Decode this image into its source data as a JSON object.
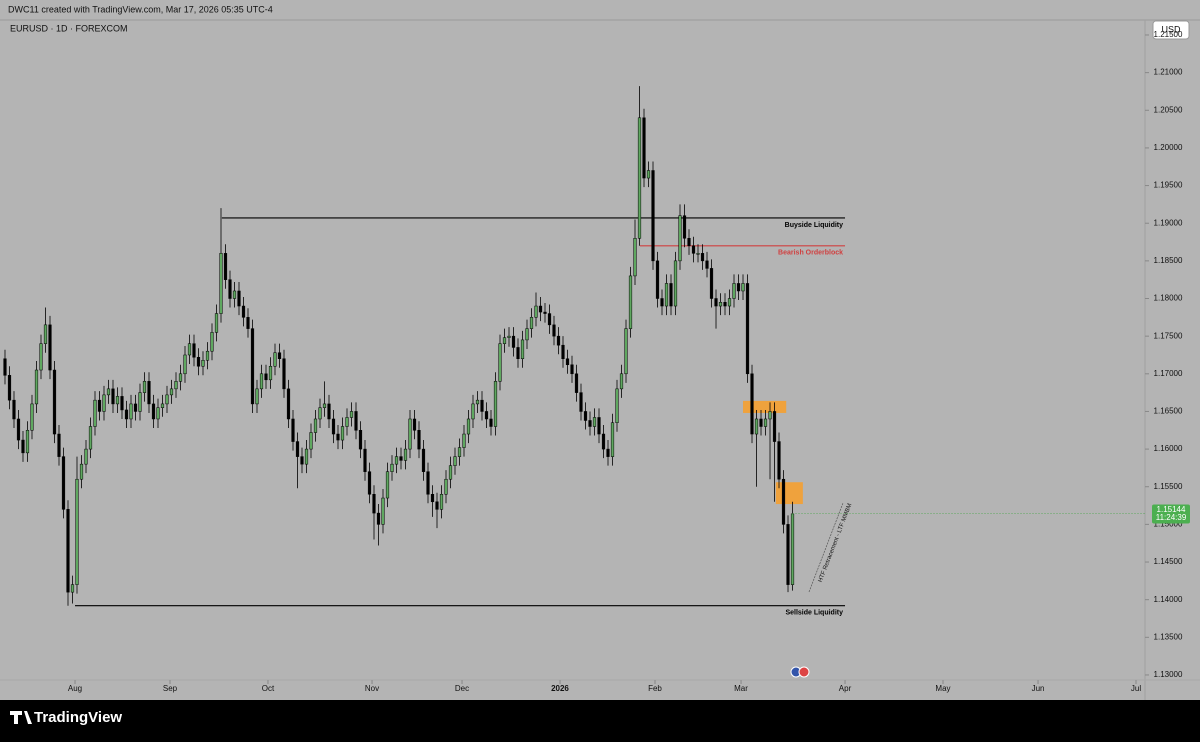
{
  "header": "DWC11 created with TradingView.com, Mar 17, 2026 05:35 UTC-4",
  "brand": "TradingView",
  "chart_data": {
    "type": "candlestick",
    "title": "EURUSD · 1D · FOREXCOM",
    "currency": "USD",
    "up_color": "#5fa860",
    "down_color": "#000000",
    "xlim": [
      -1.11,
      253.33
    ],
    "ylim": [
      1.12734,
      1.21699
    ],
    "xticks": [
      {
        "value": 15.56,
        "label": "Aug"
      },
      {
        "value": 36.67,
        "label": "Sep"
      },
      {
        "value": 58.44,
        "label": "Oct"
      },
      {
        "value": 81.56,
        "label": "Nov"
      },
      {
        "value": 101.56,
        "label": "Dec"
      },
      {
        "value": 123.33,
        "label": "2026"
      },
      {
        "value": 144.44,
        "label": "Feb"
      },
      {
        "value": 163.56,
        "label": "Mar"
      },
      {
        "value": 186.67,
        "label": "Apr"
      },
      {
        "value": 208.44,
        "label": "May"
      },
      {
        "value": 229.56,
        "label": "Jun"
      },
      {
        "value": 251.33,
        "label": "Jul"
      }
    ],
    "yticks": [
      {
        "value": 1.13,
        "label": "1.13000"
      },
      {
        "value": 1.135,
        "label": "1.13500"
      },
      {
        "value": 1.14,
        "label": "1.14000"
      },
      {
        "value": 1.145,
        "label": "1.14500"
      },
      {
        "value": 1.15,
        "label": "1.15000"
      },
      {
        "value": 1.155,
        "label": "1.15500"
      },
      {
        "value": 1.16,
        "label": "1.16000"
      },
      {
        "value": 1.165,
        "label": "1.16500"
      },
      {
        "value": 1.17,
        "label": "1.17000"
      },
      {
        "value": 1.175,
        "label": "1.17500"
      },
      {
        "value": 1.18,
        "label": "1.18000"
      },
      {
        "value": 1.185,
        "label": "1.18500"
      },
      {
        "value": 1.19,
        "label": "1.19000"
      },
      {
        "value": 1.195,
        "label": "1.19500"
      },
      {
        "value": 1.2,
        "label": "1.20000"
      },
      {
        "value": 1.205,
        "label": "1.20500"
      },
      {
        "value": 1.21,
        "label": "1.21000"
      },
      {
        "value": 1.215,
        "label": "1.21500"
      }
    ],
    "open": [
      1.172,
      1.1698,
      1.1665,
      1.164,
      1.1612,
      1.1595,
      1.1625,
      1.166,
      1.1705,
      1.174,
      1.1765,
      1.1705,
      1.162,
      1.159,
      1.152,
      1.141,
      1.142,
      1.156,
      1.158,
      1.16,
      1.163,
      1.1665,
      1.165,
      1.1672,
      1.168,
      1.166,
      1.167,
      1.1652,
      1.164,
      1.166,
      1.165,
      1.1675,
      1.169,
      1.166,
      1.164,
      1.1655,
      1.166,
      1.1672,
      1.168,
      1.169,
      1.17,
      1.1725,
      1.174,
      1.1722,
      1.171,
      1.1718,
      1.173,
      1.1755,
      1.178,
      1.186,
      1.1825,
      1.18,
      1.181,
      1.179,
      1.1775,
      1.176,
      1.166,
      1.168,
      1.17,
      1.1692,
      1.171,
      1.1728,
      1.172,
      1.168,
      1.164,
      1.161,
      1.159,
      1.158,
      1.16,
      1.1622,
      1.164,
      1.1655,
      1.166,
      1.164,
      1.162,
      1.1612,
      1.163,
      1.1642,
      1.165,
      1.1625,
      1.16,
      1.157,
      1.154,
      1.1515,
      1.15,
      1.1535,
      1.157,
      1.158,
      1.159,
      1.1585,
      1.16,
      1.164,
      1.1625,
      1.16,
      1.157,
      1.154,
      1.153,
      1.152,
      1.154,
      1.156,
      1.1578,
      1.159,
      1.1602,
      1.162,
      1.164,
      1.166,
      1.1665,
      1.165,
      1.164,
      1.163,
      1.169,
      1.174,
      1.1748,
      1.175,
      1.1735,
      1.172,
      1.1745,
      1.176,
      1.1775,
      1.179,
      1.1782,
      1.178,
      1.1765,
      1.175,
      1.1738,
      1.172,
      1.1712,
      1.17,
      1.1675,
      1.165,
      1.1638,
      1.163,
      1.1642,
      1.162,
      1.16,
      1.159,
      1.1635,
      1.168,
      1.17,
      1.176,
      1.183,
      1.188,
      1.204,
      1.196,
      1.197,
      1.185,
      1.18,
      1.179,
      1.182,
      1.179,
      1.185,
      1.191,
      1.188,
      1.187,
      1.186,
      1.186,
      1.185,
      1.184,
      1.18,
      1.179,
      1.1795,
      1.179,
      1.18,
      1.182,
      1.181,
      1.182,
      1.17,
      1.162,
      1.164,
      1.163,
      1.164,
      1.165,
      1.161,
      1.156,
      1.15,
      1.142
    ],
    "high": [
      1.1732,
      1.171,
      1.1677,
      1.1652,
      1.1624,
      1.1637,
      1.1672,
      1.1717,
      1.1752,
      1.1788,
      1.1777,
      1.1717,
      1.1632,
      1.1602,
      1.1532,
      1.1432,
      1.159,
      1.1592,
      1.1612,
      1.1642,
      1.1677,
      1.1677,
      1.1684,
      1.1692,
      1.1692,
      1.1682,
      1.1682,
      1.1664,
      1.1672,
      1.1672,
      1.1687,
      1.1702,
      1.1702,
      1.1672,
      1.1667,
      1.1672,
      1.1684,
      1.1692,
      1.1702,
      1.1712,
      1.1737,
      1.1752,
      1.1752,
      1.1734,
      1.173,
      1.1742,
      1.1767,
      1.1792,
      1.192,
      1.1872,
      1.1837,
      1.1822,
      1.1822,
      1.1802,
      1.1787,
      1.1772,
      1.1692,
      1.1712,
      1.1712,
      1.1722,
      1.174,
      1.174,
      1.1732,
      1.1692,
      1.1652,
      1.1622,
      1.1602,
      1.1612,
      1.1634,
      1.1652,
      1.1667,
      1.169,
      1.1672,
      1.1652,
      1.1632,
      1.1642,
      1.1654,
      1.1662,
      1.1662,
      1.1637,
      1.1612,
      1.1582,
      1.1552,
      1.1527,
      1.1547,
      1.1582,
      1.1592,
      1.1602,
      1.1602,
      1.1612,
      1.1652,
      1.1652,
      1.1637,
      1.1612,
      1.1582,
      1.1552,
      1.1542,
      1.1552,
      1.1572,
      1.159,
      1.1602,
      1.1614,
      1.1632,
      1.1652,
      1.1672,
      1.1677,
      1.1677,
      1.1662,
      1.1652,
      1.1702,
      1.1752,
      1.176,
      1.1762,
      1.1762,
      1.1747,
      1.1757,
      1.1772,
      1.1787,
      1.1808,
      1.1802,
      1.1794,
      1.1792,
      1.1777,
      1.1762,
      1.175,
      1.1732,
      1.1724,
      1.1712,
      1.1687,
      1.1662,
      1.165,
      1.1654,
      1.1654,
      1.1632,
      1.1612,
      1.1647,
      1.1692,
      1.1712,
      1.1772,
      1.1842,
      1.1905,
      1.2082,
      1.2052,
      1.1982,
      1.1982,
      1.1862,
      1.1812,
      1.1832,
      1.1832,
      1.1862,
      1.1925,
      1.1925,
      1.1892,
      1.1882,
      1.1872,
      1.1872,
      1.1862,
      1.1852,
      1.1812,
      1.1807,
      1.1807,
      1.1812,
      1.1832,
      1.1832,
      1.1832,
      1.1832,
      1.1712,
      1.1652,
      1.1652,
      1.1652,
      1.1662,
      1.1662,
      1.1622,
      1.1572,
      1.1512,
      1.153
    ],
    "low": [
      1.1686,
      1.1653,
      1.1628,
      1.16,
      1.1583,
      1.1583,
      1.1613,
      1.1648,
      1.1693,
      1.1728,
      1.1693,
      1.1608,
      1.1578,
      1.1508,
      1.1392,
      1.1395,
      1.1408,
      1.1548,
      1.1568,
      1.1588,
      1.1618,
      1.1638,
      1.1638,
      1.166,
      1.1648,
      1.1648,
      1.164,
      1.1628,
      1.1628,
      1.1638,
      1.1638,
      1.1663,
      1.1648,
      1.1628,
      1.1628,
      1.1643,
      1.1648,
      1.166,
      1.1668,
      1.1678,
      1.1688,
      1.1713,
      1.171,
      1.1698,
      1.1698,
      1.1706,
      1.1718,
      1.1743,
      1.1768,
      1.1813,
      1.1788,
      1.1788,
      1.1778,
      1.1763,
      1.1748,
      1.1648,
      1.1648,
      1.1668,
      1.168,
      1.168,
      1.1698,
      1.1708,
      1.1668,
      1.1628,
      1.1598,
      1.1548,
      1.1568,
      1.1568,
      1.1588,
      1.161,
      1.1628,
      1.1643,
      1.1628,
      1.1608,
      1.16,
      1.16,
      1.1618,
      1.163,
      1.1613,
      1.1588,
      1.1558,
      1.1528,
      1.148,
      1.1472,
      1.1488,
      1.1523,
      1.1558,
      1.1568,
      1.1573,
      1.1573,
      1.1588,
      1.1613,
      1.1588,
      1.1558,
      1.1528,
      1.151,
      1.1495,
      1.1508,
      1.1528,
      1.1548,
      1.1566,
      1.1578,
      1.159,
      1.1608,
      1.1628,
      1.1648,
      1.1638,
      1.1628,
      1.1618,
      1.1618,
      1.1678,
      1.1728,
      1.1736,
      1.1723,
      1.1708,
      1.1708,
      1.1733,
      1.1748,
      1.1763,
      1.177,
      1.1768,
      1.1753,
      1.1738,
      1.1726,
      1.1708,
      1.17,
      1.1688,
      1.1663,
      1.1638,
      1.1626,
      1.1618,
      1.1618,
      1.1608,
      1.1588,
      1.1578,
      1.1578,
      1.1623,
      1.1668,
      1.1688,
      1.1748,
      1.1818,
      1.187,
      1.1948,
      1.1948,
      1.1838,
      1.1788,
      1.1778,
      1.1778,
      1.1778,
      1.1778,
      1.1838,
      1.1868,
      1.1858,
      1.1848,
      1.1848,
      1.1838,
      1.1828,
      1.1788,
      1.176,
      1.1778,
      1.1778,
      1.1778,
      1.1788,
      1.1798,
      1.1798,
      1.1688,
      1.1608,
      1.155,
      1.1618,
      1.1618,
      1.156,
      1.153,
      1.1548,
      1.1488,
      1.141,
      1.1412
    ],
    "close": [
      1.1698,
      1.1665,
      1.164,
      1.1612,
      1.1595,
      1.1625,
      1.166,
      1.1705,
      1.174,
      1.1765,
      1.1705,
      1.162,
      1.159,
      1.152,
      1.141,
      1.142,
      1.156,
      1.158,
      1.16,
      1.163,
      1.1665,
      1.165,
      1.1672,
      1.168,
      1.166,
      1.167,
      1.1652,
      1.164,
      1.166,
      1.165,
      1.1675,
      1.169,
      1.166,
      1.164,
      1.1655,
      1.166,
      1.1672,
      1.168,
      1.169,
      1.17,
      1.1725,
      1.174,
      1.1722,
      1.171,
      1.1718,
      1.173,
      1.1755,
      1.178,
      1.186,
      1.1825,
      1.18,
      1.181,
      1.179,
      1.1775,
      1.176,
      1.166,
      1.168,
      1.17,
      1.1692,
      1.171,
      1.1728,
      1.172,
      1.168,
      1.164,
      1.161,
      1.159,
      1.158,
      1.16,
      1.1622,
      1.164,
      1.1655,
      1.166,
      1.164,
      1.162,
      1.1612,
      1.163,
      1.1642,
      1.165,
      1.1625,
      1.16,
      1.157,
      1.154,
      1.1515,
      1.15,
      1.1535,
      1.157,
      1.158,
      1.159,
      1.1585,
      1.16,
      1.164,
      1.1625,
      1.16,
      1.157,
      1.154,
      1.153,
      1.152,
      1.154,
      1.156,
      1.1578,
      1.159,
      1.1602,
      1.162,
      1.164,
      1.166,
      1.1665,
      1.165,
      1.164,
      1.163,
      1.169,
      1.174,
      1.1748,
      1.175,
      1.1735,
      1.172,
      1.1745,
      1.176,
      1.1775,
      1.179,
      1.1782,
      1.178,
      1.1765,
      1.175,
      1.1738,
      1.172,
      1.1712,
      1.17,
      1.1675,
      1.165,
      1.1638,
      1.163,
      1.1642,
      1.162,
      1.16,
      1.159,
      1.1635,
      1.168,
      1.17,
      1.176,
      1.183,
      1.188,
      1.204,
      1.196,
      1.197,
      1.185,
      1.18,
      1.179,
      1.182,
      1.179,
      1.185,
      1.191,
      1.188,
      1.187,
      1.186,
      1.186,
      1.185,
      1.184,
      1.18,
      1.179,
      1.1795,
      1.179,
      1.18,
      1.182,
      1.181,
      1.182,
      1.17,
      1.162,
      1.164,
      1.163,
      1.164,
      1.165,
      1.161,
      1.156,
      1.15,
      1.142,
      1.1514
    ],
    "levels": [
      {
        "label": "Buyside Liquidity",
        "price": 1.1907,
        "start": 48.2,
        "end": 186.67,
        "color": "#000000"
      },
      {
        "label": "Bearish Orderblock",
        "price": 1.187,
        "start": 141.1,
        "end": 186.67,
        "color": "#d04040"
      },
      {
        "label": "Sellside Liquidity",
        "price": 1.1392,
        "start": 15.56,
        "end": 186.67,
        "color": "#000000"
      }
    ],
    "zones": [
      {
        "top": 1.1664,
        "bottom": 1.1648,
        "start": 164.0,
        "end": 173.6,
        "color": "#f5a030"
      },
      {
        "top": 1.1556,
        "bottom": 1.1527,
        "start": 171.3,
        "end": 177.3,
        "color": "#f5a030"
      }
    ],
    "note": "HTF Retracement - LTF MMBM",
    "last_price": 1.15144,
    "countdown": "11:24:39"
  }
}
